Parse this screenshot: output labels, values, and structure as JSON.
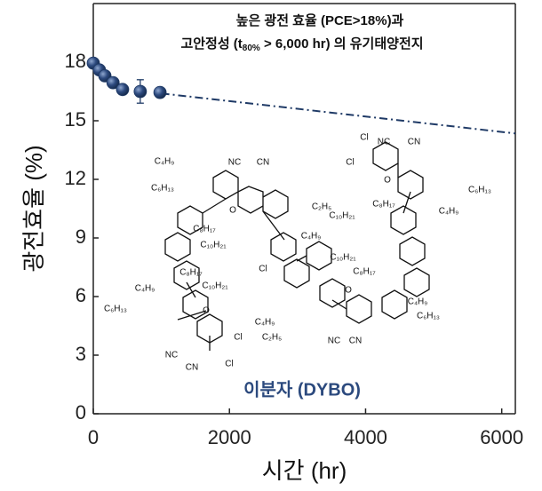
{
  "chart_data": {
    "type": "scatter",
    "title_line1": "높은 광전 효율 (PCE>18%)과",
    "title_line2": {
      "before": "고안정성 (t",
      "sub": "80%",
      "after": " > 6,000 hr) 의 유기태양전지"
    },
    "x_label": "시간 (hr)",
    "y_label": "광전효율 (%)",
    "molecule_label": "이분자 (DYBO)",
    "x": [
      0,
      90,
      170,
      290,
      430,
      690,
      980
    ],
    "values": [
      17.95,
      17.6,
      17.3,
      16.95,
      16.6,
      16.5,
      16.45
    ],
    "errors": [
      0.15,
      0.2,
      0.2,
      0.2,
      0.25,
      0.6,
      0.25
    ],
    "color": "#1f3a66",
    "trend": {
      "x": [
        1000,
        6200
      ],
      "values": [
        16.4,
        14.35
      ],
      "color": "#1f3a66"
    },
    "xlim": [
      0,
      6200
    ],
    "ylim": [
      0,
      21
    ],
    "xticks": [
      0,
      2000,
      4000,
      6000
    ],
    "yticks": [
      0,
      3,
      6,
      9,
      12,
      15,
      18
    ],
    "structure_labels": [
      "C₄H₉",
      "C₆H₁₃",
      "NC",
      "CN",
      "O",
      "C₈H₁₇",
      "C₁₀H₂₁",
      "C₁₀H₂₁",
      "C₈H₁₇",
      "C₄H₉",
      "C₆H₁₃",
      "O",
      "Cl",
      "Cl",
      "NC",
      "CN",
      "C₄H₉",
      "C₂H₅",
      "C₁₀H₂₁",
      "C₈H₁₇",
      "Cl",
      "C₂H₅",
      "C₄H₉",
      "Cl",
      "Cl",
      "NC",
      "CN",
      "O",
      "C₆H₁₃",
      "C₄H₉",
      "C₁₀H₂₁",
      "C₈H₁₇",
      "C₄H₉",
      "C₆H₁₃",
      "O",
      "NC",
      "CN"
    ]
  }
}
